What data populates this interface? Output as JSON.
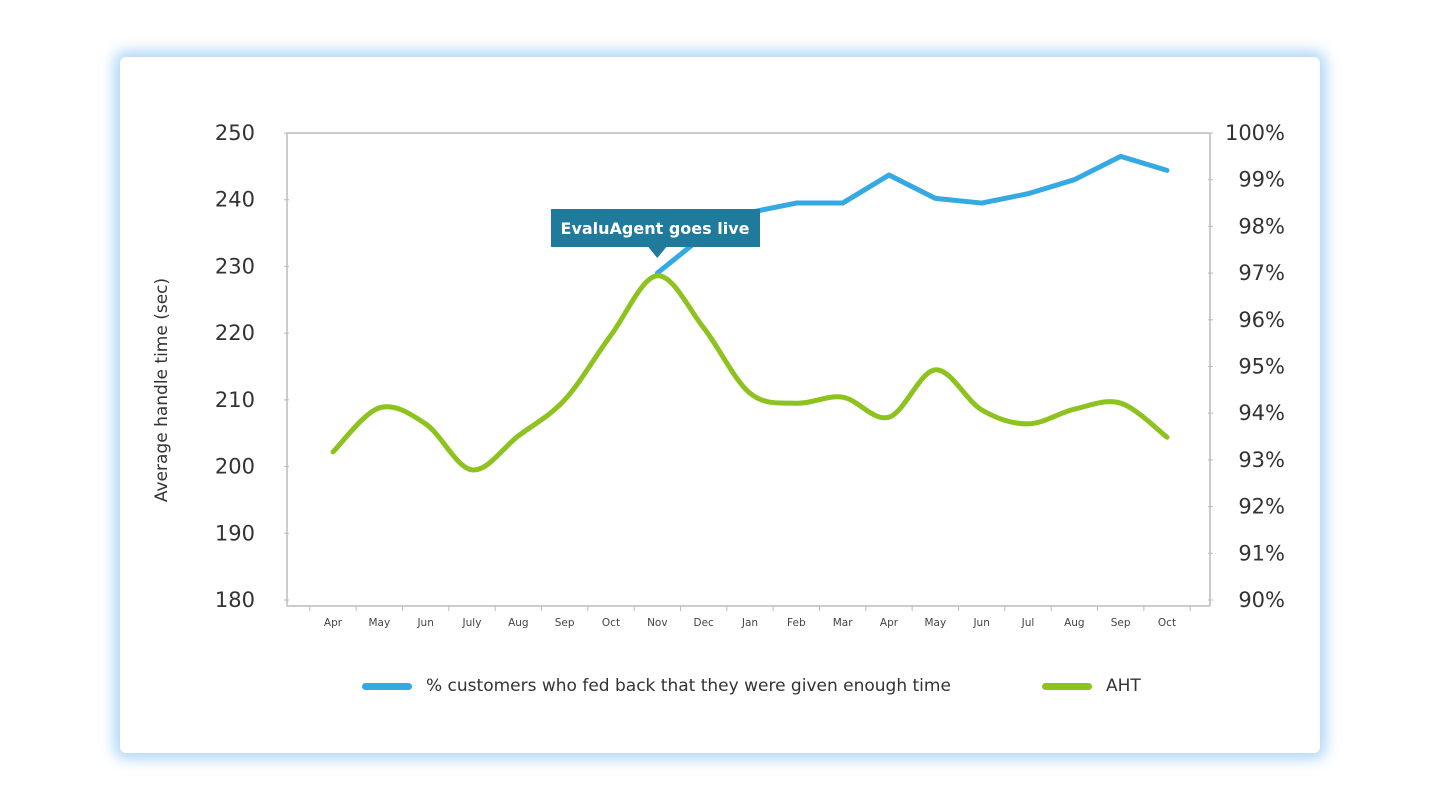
{
  "chart_data": {
    "type": "line",
    "categories": [
      "Apr",
      "May",
      "Jun",
      "July",
      "Aug",
      "Sep",
      "Oct",
      "Nov",
      "Dec",
      "Jan",
      "Feb",
      "Mar",
      "Apr",
      "May",
      "Jun",
      "Jul",
      "Aug",
      "Sep",
      "Oct"
    ],
    "ylabel": "Average handle time (sec)",
    "ylim": [
      180,
      250
    ],
    "yticks": [
      "180",
      "190",
      "200",
      "210",
      "220",
      "230",
      "240",
      "250"
    ],
    "y2lim": [
      90,
      100
    ],
    "y2ticks": [
      "90%",
      "91%",
      "92%",
      "93%",
      "94%",
      "95%",
      "96%",
      "97%",
      "98%",
      "99%",
      "100%"
    ],
    "grid": false,
    "legend_position": "bottom",
    "series": [
      {
        "name": "% customers who fed back that they were given enough time",
        "axis": "right",
        "color": "#35a9e1",
        "values": [
          null,
          null,
          null,
          null,
          null,
          null,
          null,
          97.0,
          97.8,
          98.3,
          98.5,
          98.5,
          99.1,
          98.6,
          98.5,
          98.7,
          99.0,
          99.5,
          99.2
        ]
      },
      {
        "name": "AHT",
        "axis": "left",
        "color": "#8dc21f",
        "values": [
          202.2,
          208.8,
          206.4,
          199.5,
          204.6,
          210.0,
          219.7,
          228.6,
          220.8,
          211.0,
          209.5,
          210.4,
          207.4,
          214.5,
          208.5,
          206.4,
          208.6,
          209.5,
          204.4
        ]
      }
    ],
    "annotation": {
      "text": "EvaluAgent goes live",
      "category": "Nov",
      "color": "#1f7a9c"
    }
  }
}
